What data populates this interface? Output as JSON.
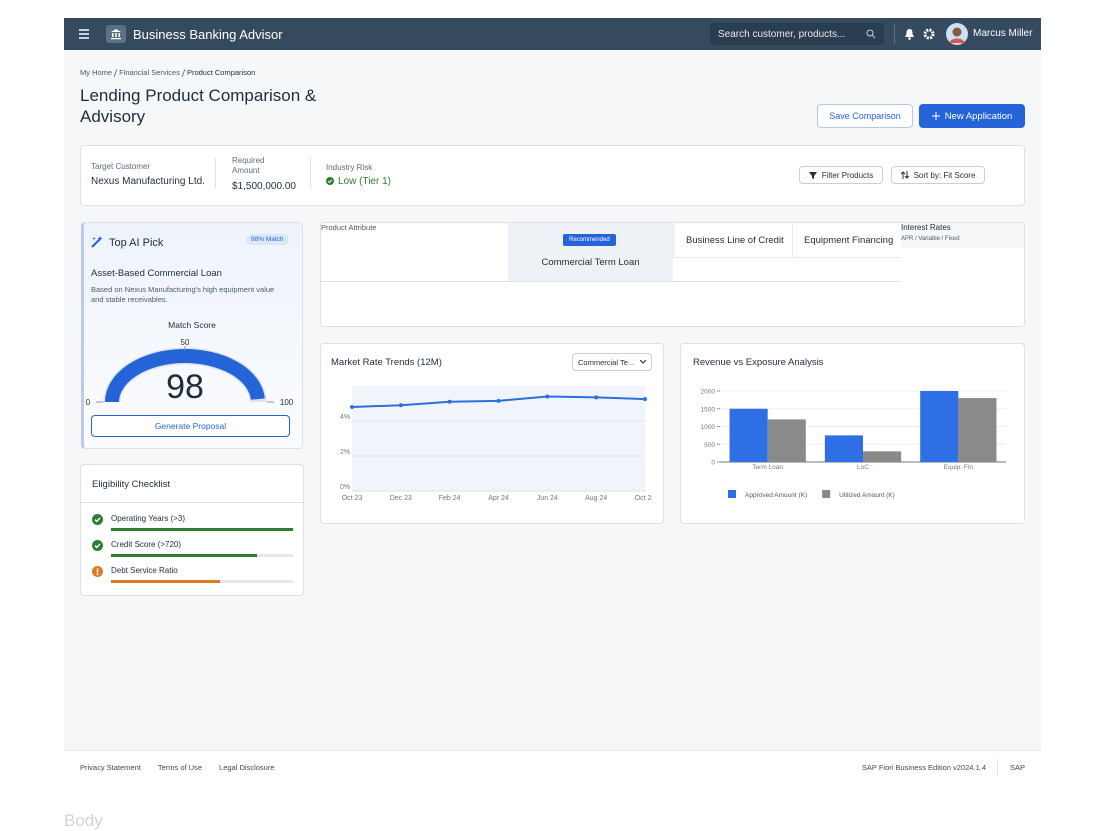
{
  "header": {
    "app_title": "Business Banking Advisor",
    "search_placeholder": "Search customer, products...",
    "user_name": "Marcus Miller"
  },
  "breadcrumb": [
    "My Home",
    "Financial Services",
    "Product Comparison"
  ],
  "page_title": "Lending Product Comparison & Advisory",
  "actions": {
    "save": "Save Comparison",
    "new": "New Application"
  },
  "customer": {
    "fields": [
      {
        "label": "Target Customer",
        "value": "Nexus Manufacturing Ltd."
      },
      {
        "label": "Required Amount",
        "value": "$1,500,000.00"
      },
      {
        "label": "Industry Risk",
        "value": "Low (Tier 1)"
      }
    ],
    "filter": "Filter Products",
    "sort": "Sort by: Fit Score"
  },
  "top_pick": {
    "title": "Top AI Pick",
    "badge": "98% Match",
    "product": "Asset-Based Commercial Loan",
    "description": "Based on Nexus Manufacturing's high equipment value and stable receivables.",
    "gauge": {
      "label": "Match Score",
      "value": 98,
      "range": [
        0,
        100
      ],
      "ticks": [
        0,
        50,
        100
      ],
      "color": "#2563d9"
    },
    "button": "Generate Proposal"
  },
  "checklist": {
    "title": "Eligibility Checklist",
    "progress_range": [
      0,
      100
    ],
    "items": [
      {
        "label": "Operating Years (>3)",
        "status": "pass",
        "progress": 100,
        "color": "#2e7d32"
      },
      {
        "label": "Credit Score (>720)",
        "status": "pass",
        "progress": 80,
        "color": "#2e7d32"
      },
      {
        "label": "Debt Service Ratio",
        "status": "warn",
        "progress": 60,
        "color": "#e07b24"
      }
    ]
  },
  "comparison": {
    "columns": [
      {
        "label": "Product Attribute"
      },
      {
        "badge": "Recommended",
        "label": "Commercial Term Loan"
      },
      {
        "label": "Business Line of Credit"
      },
      {
        "label": "Equipment Financing"
      },
      {
        "label": "Interest Rates",
        "sublabel": "APR / Variable / Fixed"
      }
    ]
  },
  "rate_chart": {
    "type": "line",
    "title": "Market Rate Trends (12M)",
    "selector": "Commercial Te...",
    "x": [
      "Oct 23",
      "Dec 23",
      "Feb 24",
      "Apr 24",
      "Jun 24",
      "Aug 24",
      "Oct 24"
    ],
    "values": [
      4.8,
      4.9,
      5.1,
      5.15,
      5.4,
      5.35,
      5.25
    ],
    "color": "#2f6fdc",
    "ylim": [
      0,
      6
    ],
    "yticks": [
      {
        "value": 0,
        "label": "0%"
      },
      {
        "value": 2,
        "label": "2%"
      },
      {
        "value": 4,
        "label": "4%"
      }
    ],
    "grid": true
  },
  "exposure_chart": {
    "type": "bar",
    "title": "Revenue vs Exposure Analysis",
    "categories": [
      "Term Loan",
      "LoC",
      "Equip. Fin"
    ],
    "series": [
      {
        "name": "Approved Amount (K)",
        "color": "#2f6fe6",
        "values": [
          1500,
          750,
          2000
        ]
      },
      {
        "name": "Utilized Amount (K)",
        "color": "#8a8a8a",
        "values": [
          1200,
          300,
          1800
        ]
      }
    ],
    "ylim": [
      0,
      2000
    ],
    "yticks": [
      0,
      500,
      1000,
      1500,
      2000
    ],
    "grid": true
  },
  "footer": {
    "links": [
      "Privacy Statement",
      "Terms of Use",
      "Legal Disclosure"
    ],
    "edition": "SAP Fiori Business Edition v2024.1.4",
    "brand": "SAP"
  },
  "overflow_label": "Body"
}
